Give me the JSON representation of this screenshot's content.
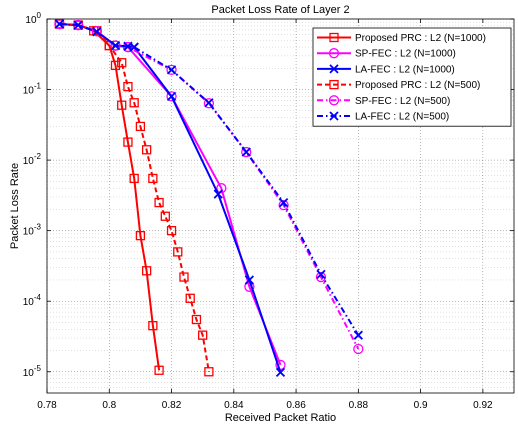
{
  "chart_data": {
    "type": "line",
    "title": "Packet Loss Rate of Layer 2",
    "xlabel": "Received Packet Ratio",
    "ylabel": "Packet Loss Rate",
    "xlim": [
      0.78,
      0.93
    ],
    "ylim": [
      5e-06,
      1
    ],
    "yscale": "log",
    "grid": true,
    "legend_position": "top-right",
    "x_ticks": [
      "0.78",
      "0.8",
      "0.82",
      "0.84",
      "0.86",
      "0.88",
      "0.9",
      "0.92"
    ],
    "y_tick_exponents": [
      0,
      -1,
      -2,
      -3,
      -4,
      -5
    ],
    "series": [
      {
        "name": "Proposed PRC : L2 (N=1000)",
        "color": "#ff0000",
        "dash": "solid",
        "marker": "square",
        "x": [
          0.784,
          0.79,
          0.795,
          0.8,
          0.802,
          0.804,
          0.806,
          0.808,
          0.81,
          0.812,
          0.814,
          0.816
        ],
        "y": [
          0.85,
          0.82,
          0.68,
          0.42,
          0.22,
          0.06,
          0.018,
          0.0055,
          0.00085,
          0.00027,
          4.5e-05,
          1.05e-05
        ]
      },
      {
        "name": "SP-FEC : L2 (N=1000)",
        "color": "#ff00ff",
        "dash": "solid",
        "marker": "circle",
        "x": [
          0.784,
          0.79,
          0.796,
          0.802,
          0.806,
          0.82,
          0.836,
          0.845,
          0.855
        ],
        "y": [
          0.85,
          0.82,
          0.67,
          0.42,
          0.4,
          0.08,
          0.004,
          0.00016,
          1.25e-05
        ]
      },
      {
        "name": "LA-FEC : L2 (N=1000)",
        "color": "#0000ff",
        "dash": "solid",
        "marker": "x",
        "x": [
          0.784,
          0.79,
          0.796,
          0.802,
          0.806,
          0.808,
          0.82,
          0.835,
          0.845,
          0.855
        ],
        "y": [
          0.85,
          0.82,
          0.66,
          0.42,
          0.41,
          0.4,
          0.08,
          0.0033,
          0.0002,
          9.8e-06
        ]
      },
      {
        "name": "Proposed PRC : L2 (N=500)",
        "color": "#ff0000",
        "dash": "dashed",
        "marker": "square",
        "x": [
          0.784,
          0.79,
          0.796,
          0.8,
          0.804,
          0.806,
          0.808,
          0.81,
          0.812,
          0.814,
          0.816,
          0.818,
          0.82,
          0.822,
          0.824,
          0.826,
          0.828,
          0.83,
          0.832
        ],
        "y": [
          0.85,
          0.82,
          0.68,
          0.42,
          0.24,
          0.11,
          0.065,
          0.03,
          0.014,
          0.0055,
          0.0025,
          0.0016,
          0.001,
          0.0005,
          0.00022,
          0.00011,
          5.5e-05,
          3.3e-05,
          1e-05
        ]
      },
      {
        "name": "SP-FEC : L2 (N=500)",
        "color": "#ff00ff",
        "dash": "dashdot",
        "marker": "circle",
        "x": [
          0.784,
          0.79,
          0.796,
          0.802,
          0.806,
          0.82,
          0.832,
          0.844,
          0.856,
          0.868,
          0.88
        ],
        "y": [
          0.85,
          0.82,
          0.67,
          0.42,
          0.4,
          0.19,
          0.064,
          0.013,
          0.0023,
          0.00022,
          2.1e-05
        ]
      },
      {
        "name": "LA-FEC : L2 (N=500)",
        "color": "#0000ff",
        "dash": "dashdot",
        "marker": "x",
        "x": [
          0.784,
          0.79,
          0.796,
          0.802,
          0.806,
          0.808,
          0.82,
          0.832,
          0.844,
          0.856,
          0.868,
          0.88
        ],
        "y": [
          0.85,
          0.82,
          0.66,
          0.42,
          0.41,
          0.4,
          0.19,
          0.065,
          0.013,
          0.0025,
          0.00024,
          3.3e-05
        ]
      }
    ]
  }
}
